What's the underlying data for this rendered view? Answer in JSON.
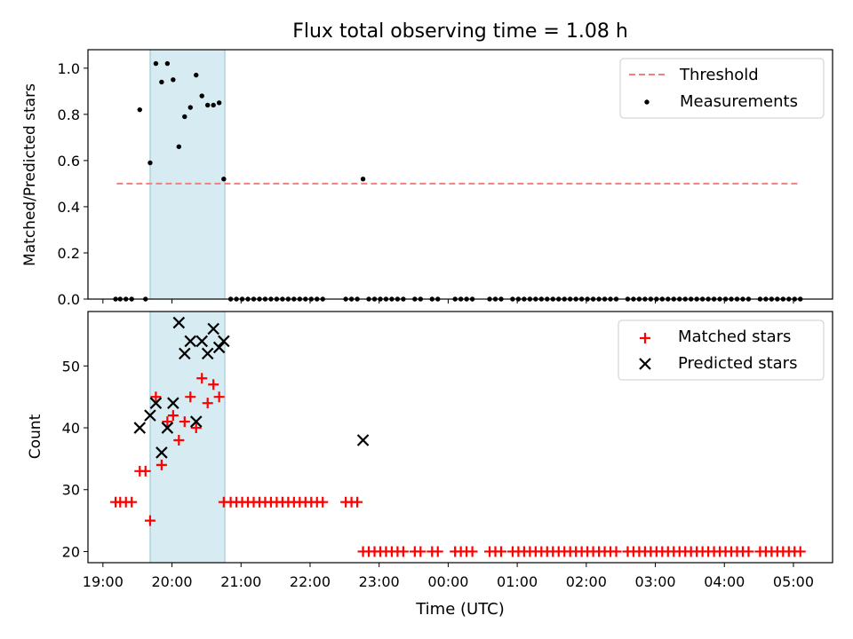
{
  "chart_data": [
    {
      "type": "scatter",
      "title": "Flux total observing time = 1.08 h",
      "xlabel": "",
      "ylabel": "Matched/Predicted stars",
      "xlim": [
        "18:47",
        "05:34"
      ],
      "ylim": [
        0,
        1.08
      ],
      "yticks": [
        "0.0",
        "0.2",
        "0.4",
        "0.6",
        "0.8",
        "1.0"
      ],
      "shaded_interval": [
        "19:41",
        "20:46"
      ],
      "legend_position": "top-right",
      "legend": [
        {
          "label": "Threshold",
          "marker": "dashed-line",
          "color": "#f08080"
        },
        {
          "label": "Measurements",
          "marker": "dot",
          "color": "#000000"
        }
      ],
      "threshold": {
        "value": 0.5,
        "x_range": [
          "19:12",
          "05:06"
        ],
        "color": "#f08080"
      },
      "series": [
        {
          "name": "Measurements",
          "color": "#000000",
          "points": [
            [
              "19:11",
              0
            ],
            [
              "19:15",
              0
            ],
            [
              "19:20",
              0
            ],
            [
              "19:25",
              0
            ],
            [
              "19:32",
              0.82
            ],
            [
              "19:37",
              0
            ],
            [
              "19:41",
              0.59
            ],
            [
              "19:46",
              1.02
            ],
            [
              "19:51",
              0.94
            ],
            [
              "19:56",
              1.02
            ],
            [
              "20:01",
              0.95
            ],
            [
              "20:06",
              0.66
            ],
            [
              "20:11",
              0.79
            ],
            [
              "20:16",
              0.83
            ],
            [
              "20:21",
              0.97
            ],
            [
              "20:26",
              0.88
            ],
            [
              "20:31",
              0.84
            ],
            [
              "20:36",
              0.84
            ],
            [
              "20:41",
              0.85
            ],
            [
              "20:45",
              0.52
            ],
            [
              "20:51",
              0
            ],
            [
              "20:56",
              0
            ],
            [
              "21:01",
              0
            ],
            [
              "21:06",
              0
            ],
            [
              "21:11",
              0
            ],
            [
              "21:16",
              0
            ],
            [
              "21:21",
              0
            ],
            [
              "21:26",
              0
            ],
            [
              "21:31",
              0
            ],
            [
              "21:36",
              0
            ],
            [
              "21:41",
              0
            ],
            [
              "21:46",
              0
            ],
            [
              "21:51",
              0
            ],
            [
              "21:56",
              0
            ],
            [
              "22:01",
              0
            ],
            [
              "22:06",
              0
            ],
            [
              "22:11",
              0
            ],
            [
              "22:31",
              0
            ],
            [
              "22:36",
              0
            ],
            [
              "22:41",
              0
            ],
            [
              "22:46",
              0.52
            ],
            [
              "22:51",
              0
            ],
            [
              "22:56",
              0
            ],
            [
              "23:01",
              0
            ],
            [
              "23:06",
              0
            ],
            [
              "23:11",
              0
            ],
            [
              "23:16",
              0
            ],
            [
              "23:21",
              0
            ],
            [
              "23:31",
              0
            ],
            [
              "23:36",
              0
            ],
            [
              "23:46",
              0
            ],
            [
              "23:51",
              0
            ],
            [
              "00:06",
              0
            ],
            [
              "00:11",
              0
            ],
            [
              "00:16",
              0
            ],
            [
              "00:21",
              0
            ],
            [
              "00:36",
              0
            ],
            [
              "00:41",
              0
            ],
            [
              "00:46",
              0
            ],
            [
              "00:56",
              0
            ],
            [
              "01:01",
              0
            ],
            [
              "01:06",
              0
            ],
            [
              "01:11",
              0
            ],
            [
              "01:16",
              0
            ],
            [
              "01:21",
              0
            ],
            [
              "01:26",
              0
            ],
            [
              "01:31",
              0
            ],
            [
              "01:36",
              0
            ],
            [
              "01:41",
              0
            ],
            [
              "01:46",
              0
            ],
            [
              "01:51",
              0
            ],
            [
              "01:56",
              0
            ],
            [
              "02:01",
              0
            ],
            [
              "02:06",
              0
            ],
            [
              "02:11",
              0
            ],
            [
              "02:16",
              0
            ],
            [
              "02:21",
              0
            ],
            [
              "02:26",
              0
            ],
            [
              "02:36",
              0
            ],
            [
              "02:41",
              0
            ],
            [
              "02:46",
              0
            ],
            [
              "02:51",
              0
            ],
            [
              "02:56",
              0
            ],
            [
              "03:01",
              0
            ],
            [
              "03:06",
              0
            ],
            [
              "03:11",
              0
            ],
            [
              "03:16",
              0
            ],
            [
              "03:21",
              0
            ],
            [
              "03:26",
              0
            ],
            [
              "03:31",
              0
            ],
            [
              "03:36",
              0
            ],
            [
              "03:41",
              0
            ],
            [
              "03:46",
              0
            ],
            [
              "03:51",
              0
            ],
            [
              "03:56",
              0
            ],
            [
              "04:01",
              0
            ],
            [
              "04:06",
              0
            ],
            [
              "04:11",
              0
            ],
            [
              "04:16",
              0
            ],
            [
              "04:21",
              0
            ],
            [
              "04:31",
              0
            ],
            [
              "04:36",
              0
            ],
            [
              "04:41",
              0
            ],
            [
              "04:46",
              0
            ],
            [
              "04:51",
              0
            ],
            [
              "04:56",
              0
            ],
            [
              "05:01",
              0
            ],
            [
              "05:06",
              0
            ]
          ]
        }
      ]
    },
    {
      "type": "scatter",
      "title": "",
      "xlabel": "Time (UTC)",
      "ylabel": "Count",
      "xlim": [
        "18:47",
        "05:34"
      ],
      "ylim": [
        18.2,
        58.8
      ],
      "xticks": [
        "19:00",
        "20:00",
        "21:00",
        "22:00",
        "23:00",
        "00:00",
        "01:00",
        "02:00",
        "03:00",
        "04:00",
        "05:00"
      ],
      "yticks": [
        "20",
        "30",
        "40",
        "50"
      ],
      "shaded_interval": [
        "19:41",
        "20:46"
      ],
      "legend_position": "top-right",
      "legend": [
        {
          "label": "Matched stars",
          "marker": "plus",
          "color": "#ff0000"
        },
        {
          "label": "Predicted stars",
          "marker": "x",
          "color": "#000000"
        }
      ],
      "series": [
        {
          "name": "Matched stars",
          "color": "#ff0000",
          "points": [
            [
              "19:11",
              28
            ],
            [
              "19:15",
              28
            ],
            [
              "19:20",
              28
            ],
            [
              "19:25",
              28
            ],
            [
              "19:32",
              33
            ],
            [
              "19:37",
              33
            ],
            [
              "19:41",
              25
            ],
            [
              "19:46",
              45
            ],
            [
              "19:51",
              34
            ],
            [
              "19:56",
              41
            ],
            [
              "20:01",
              42
            ],
            [
              "20:06",
              38
            ],
            [
              "20:11",
              41
            ],
            [
              "20:16",
              45
            ],
            [
              "20:21",
              40
            ],
            [
              "20:26",
              48
            ],
            [
              "20:31",
              44
            ],
            [
              "20:36",
              47
            ],
            [
              "20:41",
              45
            ],
            [
              "20:45",
              28
            ],
            [
              "20:51",
              28
            ],
            [
              "20:56",
              28
            ],
            [
              "21:01",
              28
            ],
            [
              "21:06",
              28
            ],
            [
              "21:11",
              28
            ],
            [
              "21:16",
              28
            ],
            [
              "21:21",
              28
            ],
            [
              "21:26",
              28
            ],
            [
              "21:31",
              28
            ],
            [
              "21:36",
              28
            ],
            [
              "21:41",
              28
            ],
            [
              "21:46",
              28
            ],
            [
              "21:51",
              28
            ],
            [
              "21:56",
              28
            ],
            [
              "22:01",
              28
            ],
            [
              "22:06",
              28
            ],
            [
              "22:11",
              28
            ],
            [
              "22:31",
              28
            ],
            [
              "22:36",
              28
            ],
            [
              "22:41",
              28
            ],
            [
              "22:46",
              20
            ],
            [
              "22:51",
              20
            ],
            [
              "22:56",
              20
            ],
            [
              "23:01",
              20
            ],
            [
              "23:06",
              20
            ],
            [
              "23:11",
              20
            ],
            [
              "23:16",
              20
            ],
            [
              "23:21",
              20
            ],
            [
              "23:31",
              20
            ],
            [
              "23:36",
              20
            ],
            [
              "23:46",
              20
            ],
            [
              "23:51",
              20
            ],
            [
              "00:06",
              20
            ],
            [
              "00:11",
              20
            ],
            [
              "00:16",
              20
            ],
            [
              "00:21",
              20
            ],
            [
              "00:36",
              20
            ],
            [
              "00:41",
              20
            ],
            [
              "00:46",
              20
            ],
            [
              "00:56",
              20
            ],
            [
              "01:01",
              20
            ],
            [
              "01:06",
              20
            ],
            [
              "01:11",
              20
            ],
            [
              "01:16",
              20
            ],
            [
              "01:21",
              20
            ],
            [
              "01:26",
              20
            ],
            [
              "01:31",
              20
            ],
            [
              "01:36",
              20
            ],
            [
              "01:41",
              20
            ],
            [
              "01:46",
              20
            ],
            [
              "01:51",
              20
            ],
            [
              "01:56",
              20
            ],
            [
              "02:01",
              20
            ],
            [
              "02:06",
              20
            ],
            [
              "02:11",
              20
            ],
            [
              "02:16",
              20
            ],
            [
              "02:21",
              20
            ],
            [
              "02:26",
              20
            ],
            [
              "02:36",
              20
            ],
            [
              "02:41",
              20
            ],
            [
              "02:46",
              20
            ],
            [
              "02:51",
              20
            ],
            [
              "02:56",
              20
            ],
            [
              "03:01",
              20
            ],
            [
              "03:06",
              20
            ],
            [
              "03:11",
              20
            ],
            [
              "03:16",
              20
            ],
            [
              "03:21",
              20
            ],
            [
              "03:26",
              20
            ],
            [
              "03:31",
              20
            ],
            [
              "03:36",
              20
            ],
            [
              "03:41",
              20
            ],
            [
              "03:46",
              20
            ],
            [
              "03:51",
              20
            ],
            [
              "03:56",
              20
            ],
            [
              "04:01",
              20
            ],
            [
              "04:06",
              20
            ],
            [
              "04:11",
              20
            ],
            [
              "04:16",
              20
            ],
            [
              "04:21",
              20
            ],
            [
              "04:31",
              20
            ],
            [
              "04:36",
              20
            ],
            [
              "04:41",
              20
            ],
            [
              "04:46",
              20
            ],
            [
              "04:51",
              20
            ],
            [
              "04:56",
              20
            ],
            [
              "05:01",
              20
            ],
            [
              "05:06",
              20
            ]
          ]
        },
        {
          "name": "Predicted stars",
          "color": "#000000",
          "points": [
            [
              "19:32",
              40
            ],
            [
              "19:41",
              42
            ],
            [
              "19:46",
              44
            ],
            [
              "19:51",
              36
            ],
            [
              "19:56",
              40
            ],
            [
              "20:01",
              44
            ],
            [
              "20:06",
              57
            ],
            [
              "20:11",
              52
            ],
            [
              "20:16",
              54
            ],
            [
              "20:21",
              41
            ],
            [
              "20:26",
              54
            ],
            [
              "20:31",
              52
            ],
            [
              "20:36",
              56
            ],
            [
              "20:41",
              53
            ],
            [
              "20:45",
              54
            ],
            [
              "22:46",
              38
            ]
          ]
        }
      ]
    }
  ]
}
